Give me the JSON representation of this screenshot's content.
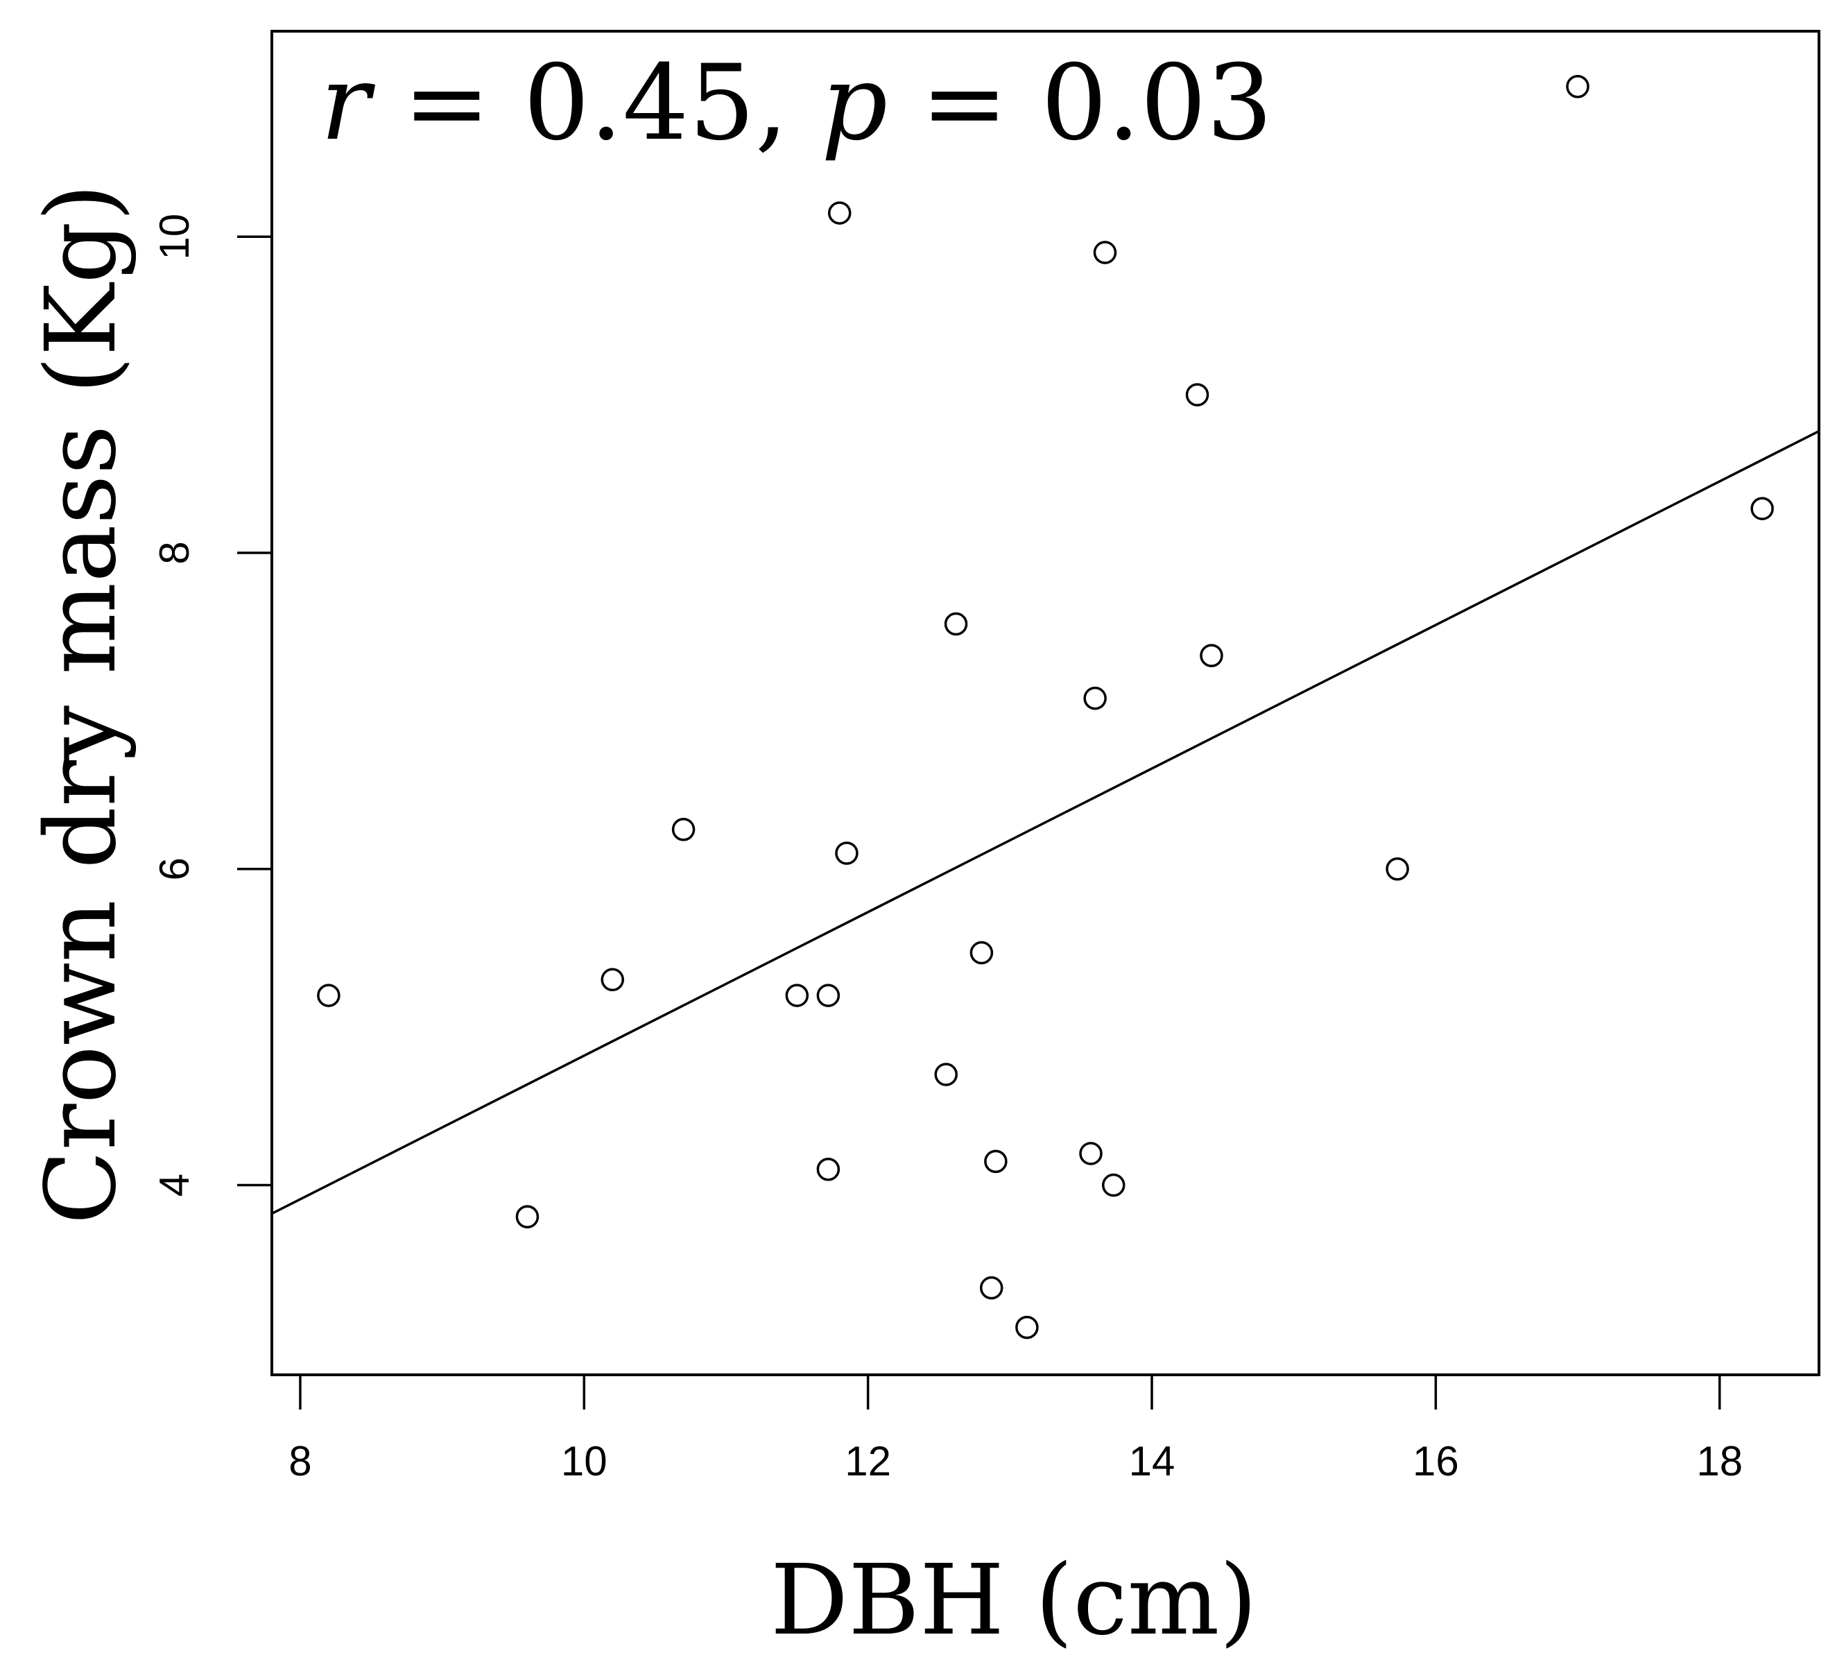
{
  "chart_data": {
    "type": "scatter",
    "title": "",
    "annotation": {
      "r_symbol": "r",
      "r_rest": " = 0.45, ",
      "p_symbol": "p",
      "p_rest": " = 0.03"
    },
    "xlabel": "DBH (cm)",
    "ylabel": "Crown dry mass (Kg)",
    "xlim": [
      7.8,
      18.7
    ],
    "ylim": [
      2.8,
      11.3
    ],
    "x_ticks": [
      8,
      10,
      12,
      14,
      16,
      18
    ],
    "x_tick_labels": [
      "8",
      "10",
      "12",
      "14",
      "16",
      "18"
    ],
    "y_ticks": [
      4,
      6,
      8,
      10
    ],
    "y_tick_labels": [
      "4",
      "6",
      "8",
      "10"
    ],
    "grid": false,
    "legend": "none",
    "point_style": "open circle",
    "series": [
      {
        "x": [
          8.2,
          9.6,
          10.2,
          10.7,
          11.5,
          11.72,
          11.72,
          11.8,
          11.85,
          12.55,
          12.62,
          12.8,
          12.87,
          12.9,
          13.12,
          13.57,
          13.6,
          13.67,
          13.73,
          14.32,
          14.42,
          15.73,
          17.0,
          18.3
        ],
        "y": [
          5.2,
          3.8,
          5.3,
          6.25,
          5.2,
          5.2,
          4.1,
          10.15,
          6.1,
          4.7,
          7.55,
          5.47,
          3.35,
          4.15,
          3.1,
          4.2,
          7.08,
          9.9,
          4.0,
          9.0,
          7.35,
          6.0,
          10.95,
          8.28
        ]
      }
    ],
    "regression_line": {
      "x": [
        7.8,
        18.7
      ],
      "y": [
        3.82,
        8.77
      ]
    }
  }
}
